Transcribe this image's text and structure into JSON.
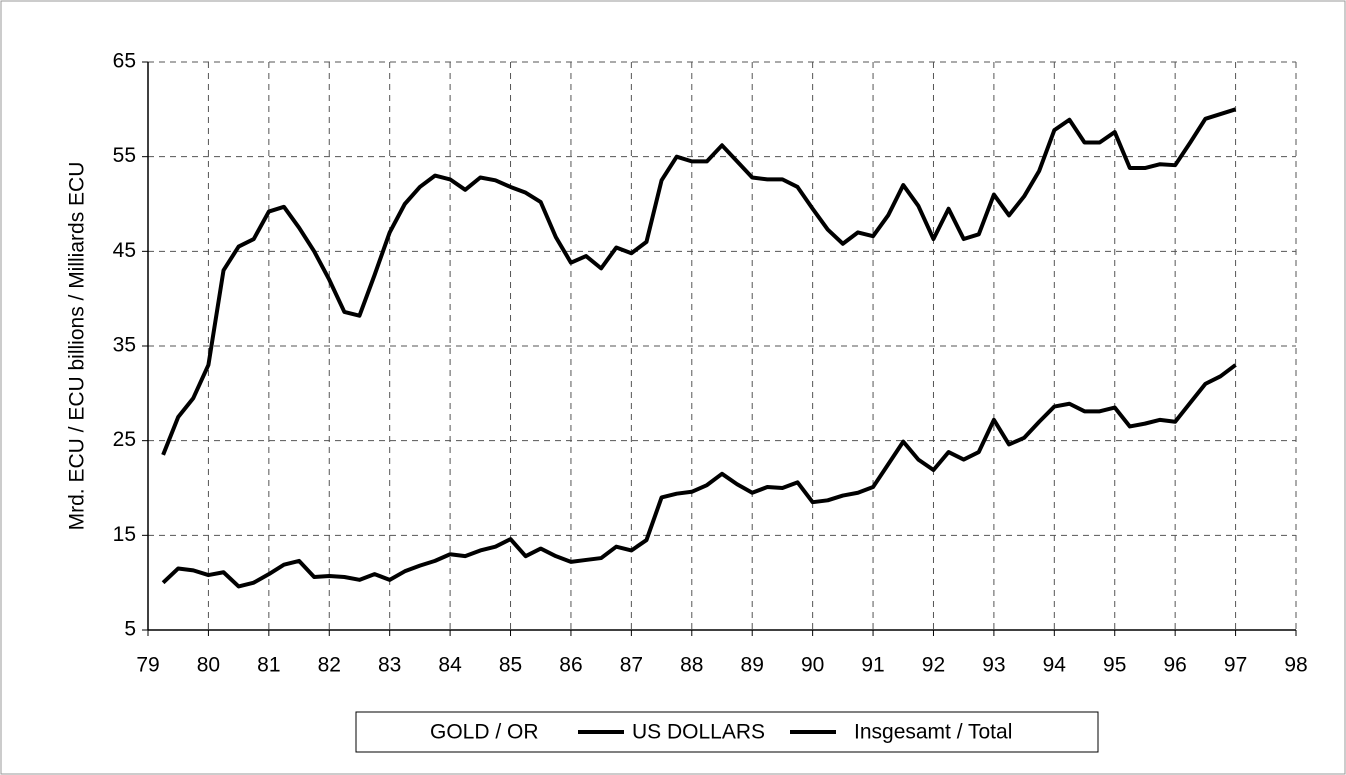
{
  "chart_data": {
    "type": "line",
    "y_label": "Mrd. ECU / ECU billions / Milliards ECU",
    "x": [
      79.25,
      79.5,
      79.75,
      80,
      80.25,
      80.5,
      80.75,
      81,
      81.25,
      81.5,
      81.75,
      82,
      82.25,
      82.5,
      82.75,
      83,
      83.25,
      83.5,
      83.75,
      84,
      84.25,
      84.5,
      84.75,
      85,
      85.25,
      85.5,
      85.75,
      86,
      86.25,
      86.5,
      86.75,
      87,
      87.25,
      87.5,
      87.75,
      88,
      88.25,
      88.5,
      88.75,
      89,
      89.25,
      89.5,
      89.75,
      90,
      90.25,
      90.5,
      90.75,
      91,
      91.25,
      91.5,
      91.75,
      92,
      92.25,
      92.5,
      92.75,
      93,
      93.25,
      93.5,
      93.75,
      94,
      94.25,
      94.5,
      94.75,
      95,
      95.25,
      95.5,
      95.75,
      96,
      96.25,
      96.5,
      96.75,
      97
    ],
    "series": [
      {
        "name": "GOLD / OR",
        "color": "#ffffff",
        "values": [
          null,
          null,
          null,
          null,
          null,
          null,
          null,
          null,
          null,
          null,
          null,
          null,
          null,
          null,
          null,
          null,
          null,
          null,
          null,
          null,
          null,
          null,
          null,
          null,
          null,
          null,
          null,
          null,
          null,
          null,
          null,
          null,
          null,
          null,
          null,
          null,
          null,
          null,
          null,
          null,
          null,
          null,
          null,
          null,
          null,
          null,
          null,
          null,
          null,
          null,
          null,
          null,
          null,
          null,
          null,
          null,
          null,
          null,
          null,
          null,
          null,
          null,
          null,
          null,
          null,
          null,
          null,
          null,
          null,
          null,
          null,
          null
        ]
      },
      {
        "name": "US DOLLARS",
        "color": "#000000",
        "values": [
          10,
          11.5,
          11.3,
          10.8,
          11.1,
          9.6,
          10,
          10.9,
          11.9,
          12.3,
          10.6,
          10.7,
          10.6,
          10.3,
          10.9,
          10.3,
          11.2,
          11.8,
          12.3,
          13,
          12.8,
          13.4,
          13.8,
          14.6,
          12.8,
          13.6,
          12.8,
          12.2,
          12.4,
          12.6,
          13.8,
          13.4,
          14.5,
          19,
          19.4,
          19.6,
          20.3,
          21.5,
          20.4,
          19.5,
          20.1,
          20,
          20.6,
          18.5,
          18.7,
          19.2,
          19.5,
          20.1,
          22.5,
          24.9,
          23,
          21.9,
          23.8,
          23,
          23.8,
          27.2,
          24.6,
          25.3,
          27,
          28.6,
          28.9,
          28.1,
          28.1,
          28.5,
          26.5,
          26.8,
          27.2,
          27,
          29,
          31,
          31.8,
          33
        ]
      },
      {
        "name": "Insgesamt / Total",
        "color": "#000000",
        "values": [
          23.5,
          27.5,
          29.5,
          33,
          43,
          45.5,
          46.3,
          49.2,
          49.7,
          47.5,
          45,
          42,
          38.6,
          38.2,
          42.5,
          47,
          50,
          51.8,
          53,
          52.6,
          51.5,
          52.8,
          52.5,
          51.8,
          51.2,
          50.2,
          46.5,
          43.8,
          44.5,
          43.2,
          45.4,
          44.8,
          46,
          52.5,
          55,
          54.5,
          54.5,
          56.2,
          54.5,
          52.8,
          52.6,
          52.6,
          51.8,
          49.5,
          47.3,
          45.8,
          47,
          46.6,
          48.8,
          52,
          49.8,
          46.3,
          49.5,
          46.3,
          46.8,
          51,
          48.8,
          50.8,
          53.5,
          57.8,
          58.9,
          56.5,
          56.5,
          57.6,
          53.8,
          53.8,
          54.2,
          54.1,
          56.5,
          59,
          59.5,
          60
        ]
      }
    ],
    "xlim": [
      79,
      98
    ],
    "xticks": [
      79,
      80,
      81,
      82,
      83,
      84,
      85,
      86,
      87,
      88,
      89,
      90,
      91,
      92,
      93,
      94,
      95,
      96,
      97,
      98
    ],
    "ylim": [
      5,
      65
    ],
    "yticks": [
      5,
      15,
      25,
      35,
      45,
      55,
      65
    ],
    "grid": true,
    "legend": "bottom"
  }
}
